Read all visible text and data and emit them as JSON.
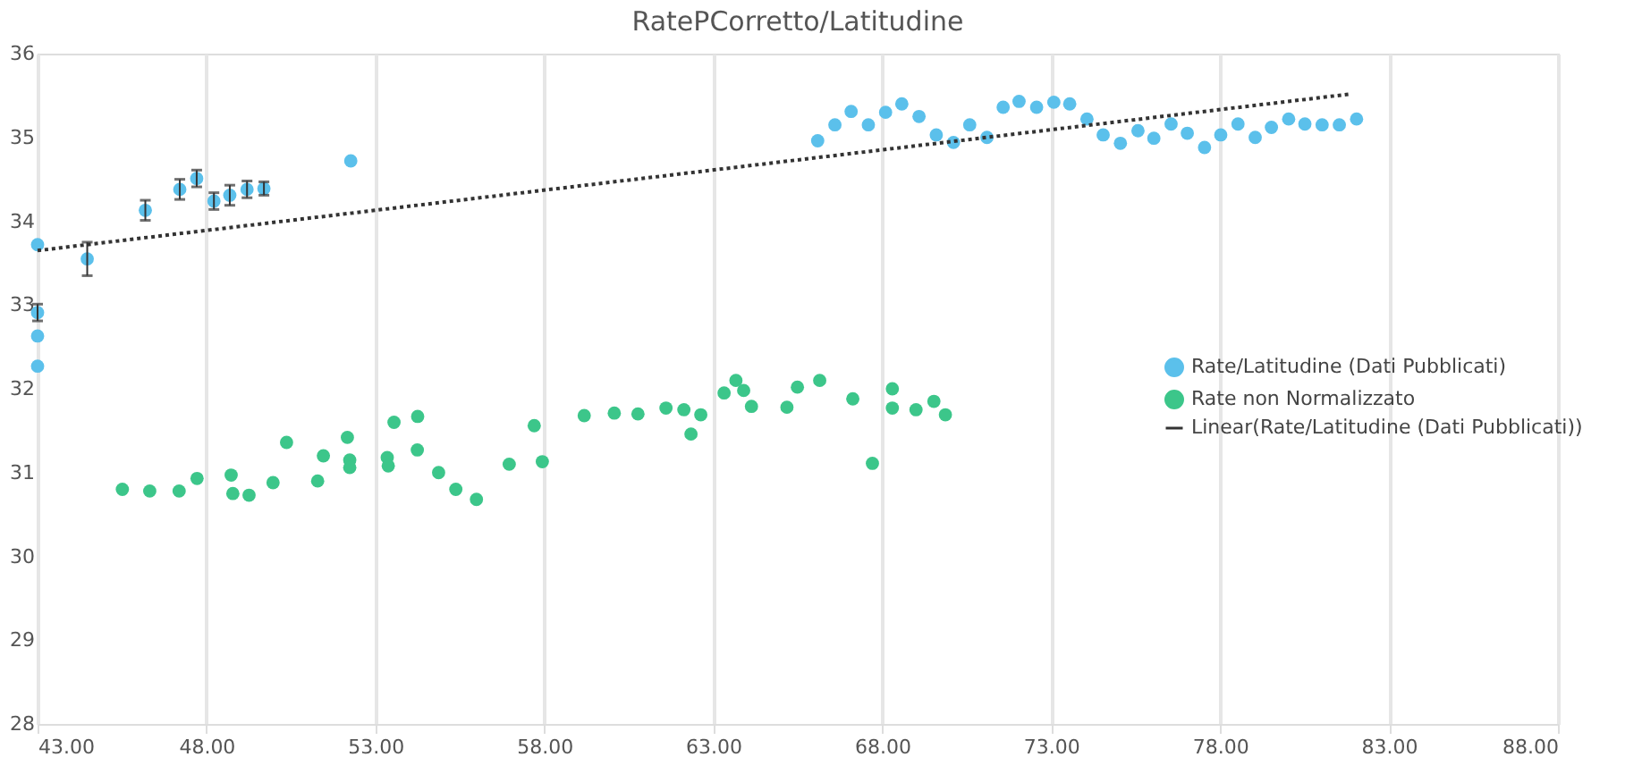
{
  "chart_data": {
    "type": "scatter",
    "title": "RatePCorretto/Latitudine",
    "xlim": [
      43,
      88
    ],
    "xticks": [
      {
        "value": 43,
        "label": "43.00"
      },
      {
        "value": 48,
        "label": "48.00"
      },
      {
        "value": 53,
        "label": "53.00"
      },
      {
        "value": 58,
        "label": "58.00"
      },
      {
        "value": 63,
        "label": "63.00"
      },
      {
        "value": 68,
        "label": "68.00"
      },
      {
        "value": 73,
        "label": "73.00"
      },
      {
        "value": 78,
        "label": "78.00"
      },
      {
        "value": 83,
        "label": "83.00"
      },
      {
        "value": 88,
        "label": "88.00"
      }
    ],
    "ylim": [
      28,
      36
    ],
    "yticks": [
      28,
      29,
      30,
      31,
      32,
      33,
      34,
      35,
      36
    ],
    "grid": "x",
    "legend": "right",
    "marker": "circle",
    "series": [
      {
        "name": "Rate/Latitudine (Dati Pubblicati)",
        "color": "#5bc0eb",
        "x": [
          43,
          43,
          43,
          43,
          44.47,
          46.19,
          47.21,
          47.71,
          48.22,
          48.69,
          49.2,
          49.7,
          52.27,
          66.09,
          66.6,
          67.08,
          67.59,
          68.1,
          68.58,
          69.09,
          69.6,
          70.11,
          70.59,
          71.1,
          71.58,
          72.05,
          72.57,
          73.08,
          73.55,
          74.06,
          74.54,
          75.05,
          75.57,
          76.04,
          76.55,
          77.03,
          77.54,
          78.02,
          78.53,
          79.04,
          79.52,
          80.03,
          80.51,
          81.02,
          81.53,
          82.04
        ],
        "values": [
          33.72,
          32.91,
          32.63,
          32.27,
          33.55,
          34.13,
          34.38,
          34.51,
          34.24,
          34.31,
          34.38,
          34.39,
          34.72,
          34.96,
          35.15,
          35.31,
          35.15,
          35.3,
          35.4,
          35.25,
          35.03,
          34.94,
          35.15,
          35.0,
          35.36,
          35.43,
          35.36,
          35.42,
          35.4,
          35.22,
          35.03,
          34.93,
          35.08,
          34.99,
          35.16,
          35.05,
          34.88,
          35.03,
          35.16,
          35.0,
          35.12,
          35.22,
          35.16,
          35.15,
          35.15,
          35.22
        ],
        "errors": [
          null,
          0.1,
          null,
          null,
          0.2,
          0.12,
          0.12,
          0.1,
          0.1,
          0.12,
          0.1,
          0.08,
          null,
          null,
          null,
          null,
          null,
          null,
          null,
          null,
          null,
          null,
          null,
          null,
          null,
          null,
          null,
          null,
          null,
          null,
          null,
          null,
          null,
          null,
          null,
          null,
          null,
          null,
          null,
          null,
          null,
          null,
          null,
          null,
          null,
          null
        ]
      },
      {
        "name": "Rate non Normalizzato",
        "color": "#3cc68a",
        "x": [
          45.51,
          46.32,
          47.19,
          47.72,
          48.73,
          48.78,
          49.26,
          49.97,
          50.37,
          51.29,
          51.46,
          52.17,
          52.24,
          52.24,
          53.35,
          53.38,
          53.55,
          54.25,
          54.24,
          54.87,
          55.38,
          55.99,
          56.96,
          57.7,
          57.94,
          59.18,
          60.07,
          60.77,
          61.6,
          62.13,
          62.34,
          62.63,
          63.32,
          63.67,
          63.9,
          64.13,
          65.18,
          65.49,
          66.15,
          67.13,
          67.71,
          68.3,
          68.3,
          69.0,
          69.53,
          69.87
        ],
        "values": [
          30.8,
          30.78,
          30.78,
          30.93,
          30.97,
          30.75,
          30.73,
          30.88,
          31.36,
          30.9,
          31.2,
          31.42,
          31.15,
          31.06,
          31.18,
          31.08,
          31.6,
          31.67,
          31.27,
          31.0,
          30.8,
          30.68,
          31.1,
          31.56,
          31.13,
          31.68,
          31.71,
          31.7,
          31.77,
          31.75,
          31.46,
          31.69,
          31.95,
          32.1,
          31.98,
          31.79,
          31.78,
          32.02,
          32.1,
          31.88,
          31.11,
          32.0,
          31.77,
          31.75,
          31.85,
          31.69
        ]
      },
      {
        "name": "Linear(Rate/Latitudine (Dati Pubblicati))",
        "type": "line",
        "color": "#333333",
        "line_style": "dotted",
        "marker": "none",
        "x": [
          43,
          81.9
        ],
        "values": [
          33.65,
          35.52
        ]
      }
    ]
  }
}
